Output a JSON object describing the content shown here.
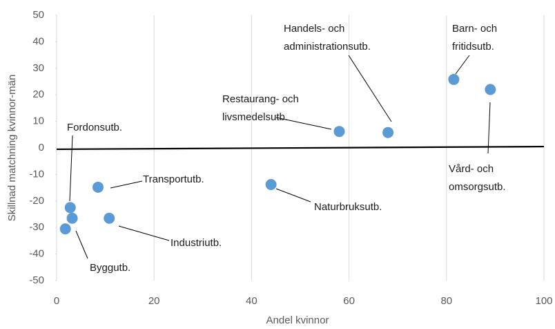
{
  "chart_data": {
    "type": "scatter",
    "x_label": "Andel kvinnor",
    "y_label": "Skillnad matchning kvinnor-män",
    "xlim": [
      0,
      100
    ],
    "xticks": [
      0,
      20,
      40,
      60,
      80,
      100
    ],
    "ylim": [
      -50,
      50
    ],
    "yticks": [
      -50,
      -40,
      -30,
      -20,
      -10,
      0,
      10,
      20,
      30,
      40,
      50
    ],
    "grid": true,
    "series": [
      {
        "color": "#5b9bd5",
        "x": [
          1.8,
          2.8,
          3.2,
          8.5,
          10.8,
          44,
          58,
          68,
          81.5,
          89
        ],
        "values": [
          -30.5,
          -22.5,
          -26.5,
          -14.8,
          -26.5,
          -13.8,
          6.2,
          5.8,
          25.8,
          22
        ],
        "labels": [
          null,
          [
            "Fordonsutb."
          ],
          [
            "Byggutb."
          ],
          [
            "Transportutb."
          ],
          [
            "Industriutb."
          ],
          [
            "Naturbruksutb."
          ],
          [
            "Restaurang- och",
            "livsmedelsutb."
          ],
          [
            "Handels- och",
            "administrationsutb."
          ],
          [
            "Barn- och",
            "fritidsutb."
          ],
          [
            "Vård- och",
            "omsorgsutb."
          ]
        ]
      }
    ],
    "trendline": {
      "x": [
        0,
        100
      ],
      "y": [
        -0.5,
        0.5
      ]
    }
  }
}
